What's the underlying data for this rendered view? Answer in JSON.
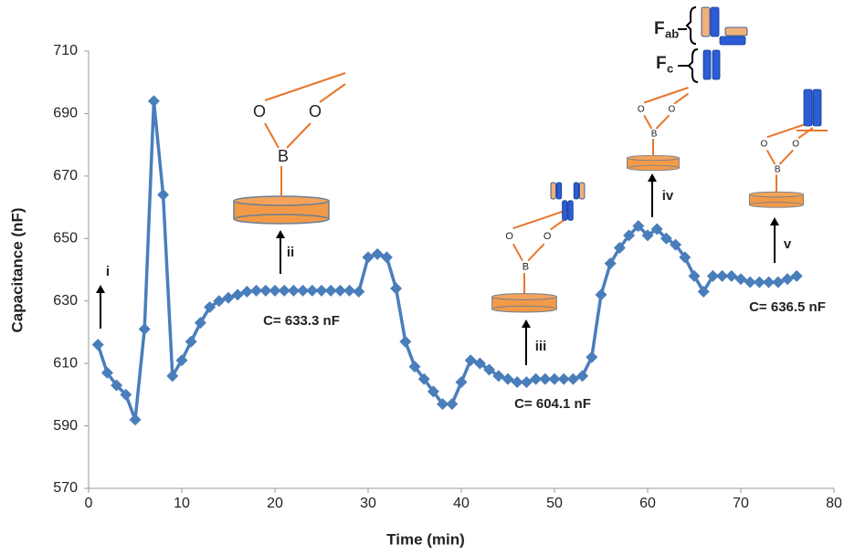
{
  "chart_data": {
    "type": "line",
    "x_label": "Time (min)",
    "y_label": "Capacitance (nF)",
    "x": [
      1,
      2,
      3,
      4,
      5,
      6,
      7,
      8,
      9,
      10,
      11,
      12,
      13,
      14,
      15,
      16,
      17,
      18,
      19,
      20,
      21,
      22,
      23,
      24,
      25,
      26,
      27,
      28,
      29,
      30,
      31,
      32,
      33,
      34,
      35,
      36,
      37,
      38,
      39,
      40,
      41,
      42,
      43,
      44,
      45,
      46,
      47,
      48,
      49,
      50,
      51,
      52,
      53,
      54,
      55,
      56,
      57,
      58,
      59,
      60,
      61,
      62,
      63,
      64,
      65,
      66,
      67,
      68,
      69,
      70,
      71,
      72,
      73,
      74,
      75,
      76
    ],
    "values": [
      616,
      607,
      603,
      600,
      592,
      621,
      694,
      664,
      606,
      611,
      617,
      623,
      628,
      630,
      631,
      632,
      633,
      633.3,
      633.3,
      633.3,
      633.3,
      633.3,
      633.3,
      633.3,
      633.3,
      633.3,
      633.3,
      633.3,
      633,
      644,
      645,
      644,
      634,
      617,
      609,
      605,
      601,
      597,
      597,
      604,
      611,
      610,
      608,
      606,
      605,
      604,
      604,
      605,
      605,
      605,
      605,
      605,
      606,
      612,
      632,
      642,
      647,
      651,
      654,
      651,
      653,
      650,
      648,
      644,
      638,
      633,
      638,
      638,
      638,
      637,
      636,
      636,
      636,
      636,
      637,
      638
    ],
    "color": "#4a7ebb",
    "xlim": [
      0,
      80
    ],
    "xticks": [
      0,
      10,
      20,
      30,
      40,
      50,
      60,
      70,
      80
    ],
    "ylim": [
      570,
      710
    ],
    "yticks": [
      570,
      590,
      610,
      630,
      650,
      670,
      690,
      710
    ],
    "annotations": {
      "steps": [
        "i",
        "ii",
        "iii",
        "iv",
        "v"
      ],
      "capacitance_labels": [
        "C= 633.3 nF",
        "C= 604.1 nF",
        "C= 636.5 nF"
      ],
      "structure": {
        "oxygen": "O",
        "boron": "B",
        "fab": "F",
        "fab_sub": "ab",
        "fc": "F",
        "fc_sub": "c"
      }
    }
  }
}
